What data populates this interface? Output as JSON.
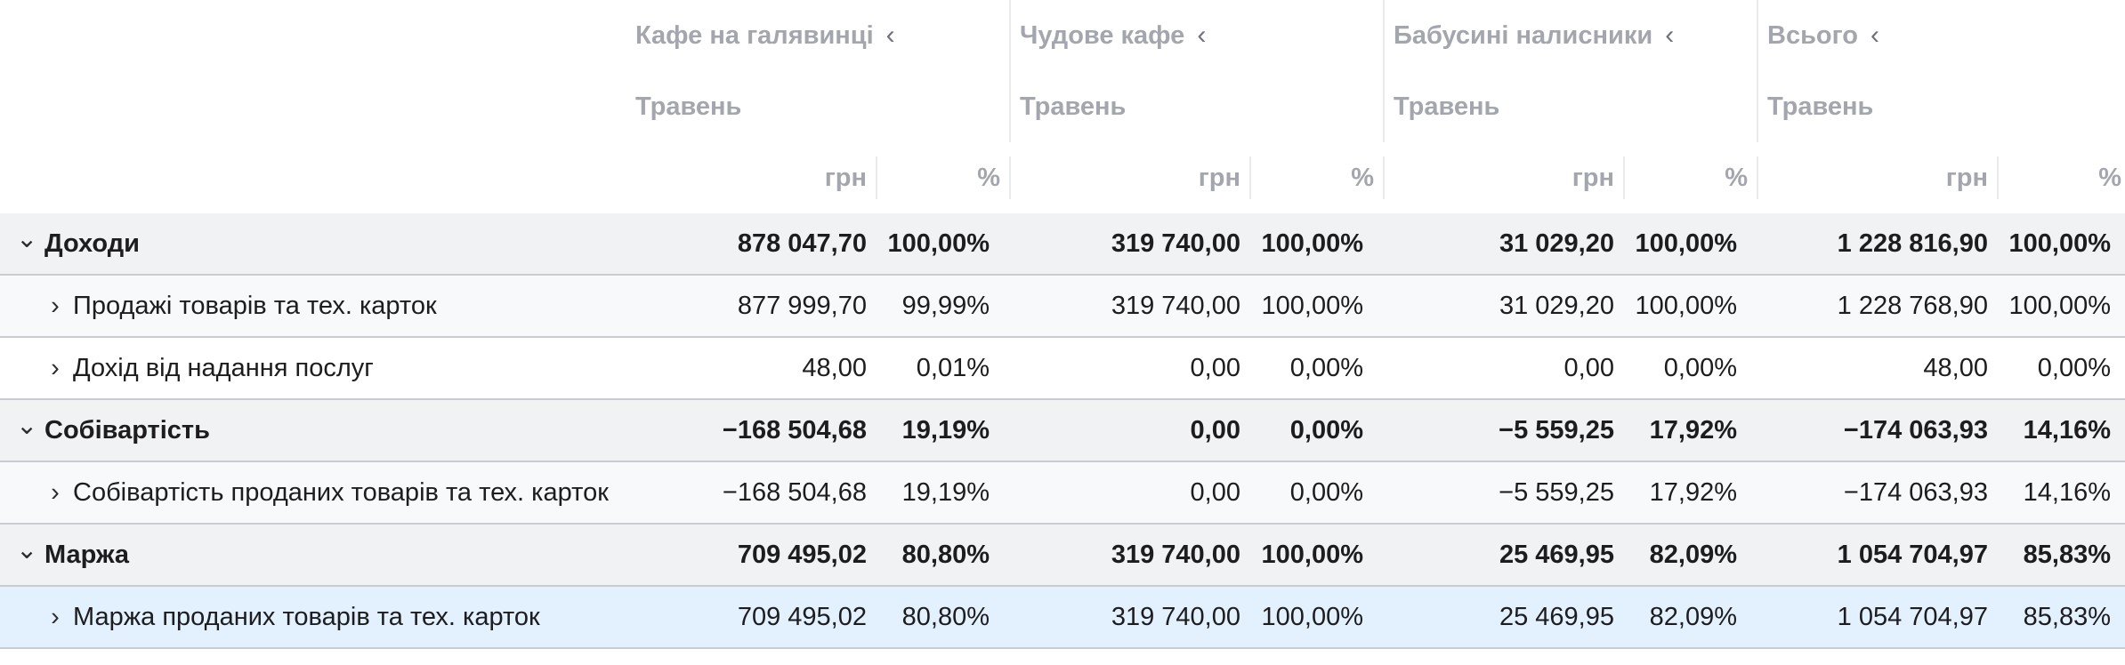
{
  "columns": [
    {
      "name": "Кафе на галявинці",
      "period": "Травень"
    },
    {
      "name": "Чудове кафе",
      "period": "Травень"
    },
    {
      "name": "Бабусині налисники",
      "period": "Травень"
    },
    {
      "name": "Всього",
      "period": "Травень"
    }
  ],
  "collapse_icon": "chevron-left-icon",
  "units": {
    "amount": "грн",
    "percent": "%"
  },
  "rows": [
    {
      "label": "Доходи",
      "type": "group",
      "expanded": true,
      "values": [
        [
          "878 047,70",
          "100,00%"
        ],
        [
          "319 740,00",
          "100,00%"
        ],
        [
          "31 029,20",
          "100,00%"
        ],
        [
          "1 228 816,90",
          "100,00%"
        ]
      ]
    },
    {
      "label": "Продажі товарів та тех. карток",
      "type": "child",
      "expanded": false,
      "values": [
        [
          "877 999,70",
          "99,99%"
        ],
        [
          "319 740,00",
          "100,00%"
        ],
        [
          "31 029,20",
          "100,00%"
        ],
        [
          "1 228 768,90",
          "100,00%"
        ]
      ]
    },
    {
      "label": "Дохід від надання послуг",
      "type": "child",
      "expanded": false,
      "values": [
        [
          "48,00",
          "0,01%"
        ],
        [
          "0,00",
          "0,00%"
        ],
        [
          "0,00",
          "0,00%"
        ],
        [
          "48,00",
          "0,00%"
        ]
      ]
    },
    {
      "label": "Собівартість",
      "type": "group",
      "expanded": true,
      "values": [
        [
          "−168 504,68",
          "19,19%"
        ],
        [
          "0,00",
          "0,00%"
        ],
        [
          "−5 559,25",
          "17,92%"
        ],
        [
          "−174 063,93",
          "14,16%"
        ]
      ]
    },
    {
      "label": "Собівартість проданих товарів та тех. карток",
      "type": "child",
      "expanded": false,
      "values": [
        [
          "−168 504,68",
          "19,19%"
        ],
        [
          "0,00",
          "0,00%"
        ],
        [
          "−5 559,25",
          "17,92%"
        ],
        [
          "−174 063,93",
          "14,16%"
        ]
      ]
    },
    {
      "label": "Маржа",
      "type": "group",
      "expanded": true,
      "values": [
        [
          "709 495,02",
          "80,80%"
        ],
        [
          "319 740,00",
          "100,00%"
        ],
        [
          "25 469,95",
          "82,09%"
        ],
        [
          "1 054 704,97",
          "85,83%"
        ]
      ]
    },
    {
      "label": "Маржа проданих товарів та тех. карток",
      "type": "child",
      "expanded": false,
      "selected": true,
      "values": [
        [
          "709 495,02",
          "80,80%"
        ],
        [
          "319 740,00",
          "100,00%"
        ],
        [
          "25 469,95",
          "82,09%"
        ],
        [
          "1 054 704,97",
          "85,83%"
        ]
      ]
    }
  ]
}
